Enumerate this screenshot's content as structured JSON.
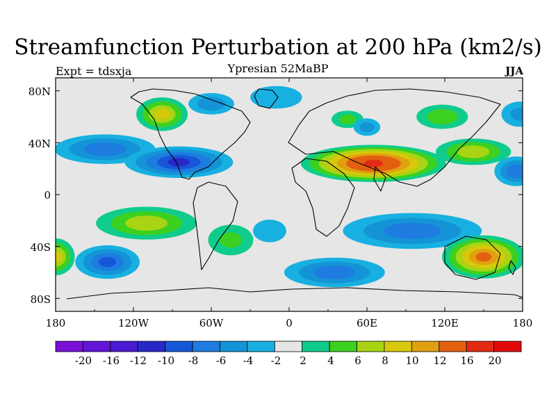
{
  "figure": {
    "title": "Streamfunction Perturbation at 200 hPa (km2/s)",
    "experiment_label": "Expt = tdsxja",
    "subtitle": "Ypresian  52MaBP",
    "season": "JJA"
  },
  "map": {
    "projection": "cylindrical equidistant",
    "lon_range": [
      -180,
      180
    ],
    "lat_range": [
      -90,
      90
    ],
    "lon_ticks": [
      "180",
      "120W",
      "60W",
      "0",
      "60E",
      "120E",
      "180"
    ],
    "lat_ticks": [
      "80N",
      "40N",
      "0",
      "40S",
      "80S"
    ],
    "fields": [
      {
        "name": "n-pacific-low",
        "lon": -142,
        "lat": 35,
        "sx": 30,
        "sy": 8,
        "value": -7
      },
      {
        "name": "pacific-ridge",
        "lon": -98,
        "lat": 62,
        "sx": 14,
        "sy": 9,
        "value": 8
      },
      {
        "name": "america-low",
        "lon": -85,
        "lat": 25,
        "sx": 30,
        "sy": 8,
        "value": -10
      },
      {
        "name": "arctic-low",
        "lon": -60,
        "lat": 70,
        "sx": 14,
        "sy": 6,
        "value": -5
      },
      {
        "name": "atlantic-high",
        "lon": -10,
        "lat": 75,
        "sx": 20,
        "sy": 8,
        "value": -3
      },
      {
        "name": "afro-asian-high",
        "lon": 65,
        "lat": 24,
        "sx": 38,
        "sy": 9,
        "value": 16
      },
      {
        "name": "asia-high",
        "lon": 45,
        "lat": 58,
        "sx": 10,
        "sy": 5,
        "value": 4
      },
      {
        "name": "siberia-low",
        "lon": 60,
        "lat": 52,
        "sx": 8,
        "sy": 5,
        "value": -4
      },
      {
        "name": "ne-asia-high",
        "lon": 118,
        "lat": 60,
        "sx": 16,
        "sy": 7,
        "value": 5
      },
      {
        "name": "w-pacific-high",
        "lon": 142,
        "lat": 33,
        "sx": 22,
        "sy": 7,
        "value": 7
      },
      {
        "name": "e-pacific-low",
        "lon": 175,
        "lat": 18,
        "sx": 12,
        "sy": 8,
        "value": -7
      },
      {
        "name": "far-north-low",
        "lon": 178,
        "lat": 62,
        "sx": 12,
        "sy": 8,
        "value": -4
      },
      {
        "name": "s-pacific-high",
        "lon": -110,
        "lat": -22,
        "sx": 30,
        "sy": 9,
        "value": 7
      },
      {
        "name": "s-america-high",
        "lon": -45,
        "lat": -35,
        "sx": 15,
        "sy": 10,
        "value": 4
      },
      {
        "name": "s-pacific-low",
        "lon": -140,
        "lat": -52,
        "sx": 18,
        "sy": 9,
        "value": -8
      },
      {
        "name": "s-atlantic-low",
        "lon": -15,
        "lat": -28,
        "sx": 12,
        "sy": 8,
        "value": -3
      },
      {
        "name": "s-indian-low",
        "lon": 95,
        "lat": -28,
        "sx": 42,
        "sy": 10,
        "value": -7
      },
      {
        "name": "s-ocean-low",
        "lon": 35,
        "lat": -60,
        "sx": 30,
        "sy": 8,
        "value": -7
      },
      {
        "name": "australia-high",
        "lon": 150,
        "lat": -48,
        "sx": 22,
        "sy": 11,
        "value": 12
      },
      {
        "name": "w-edge-high",
        "lon": -180,
        "lat": -48,
        "sx": 10,
        "sy": 10,
        "value": 8
      }
    ]
  },
  "colorbar": {
    "labels": [
      "-20",
      "-16",
      "-12",
      "-10",
      "-8",
      "-6",
      "-4",
      "-2",
      "2",
      "4",
      "6",
      "8",
      "10",
      "12",
      "16",
      "20"
    ],
    "levels": [
      -20,
      -16,
      -12,
      -10,
      -8,
      -6,
      -4,
      -2,
      2,
      4,
      6,
      8,
      10,
      12,
      16,
      20
    ],
    "colors": [
      "#7a0fd6",
      "#6215d6",
      "#4a19d2",
      "#2828c8",
      "#1656d8",
      "#1e7ce0",
      "#1494d6",
      "#18b0e0",
      "#e6e6e6",
      "#10cc8c",
      "#3cd020",
      "#a8d414",
      "#d8c80c",
      "#e0a010",
      "#e26010",
      "#e22a14",
      "#e00a0a"
    ]
  }
}
